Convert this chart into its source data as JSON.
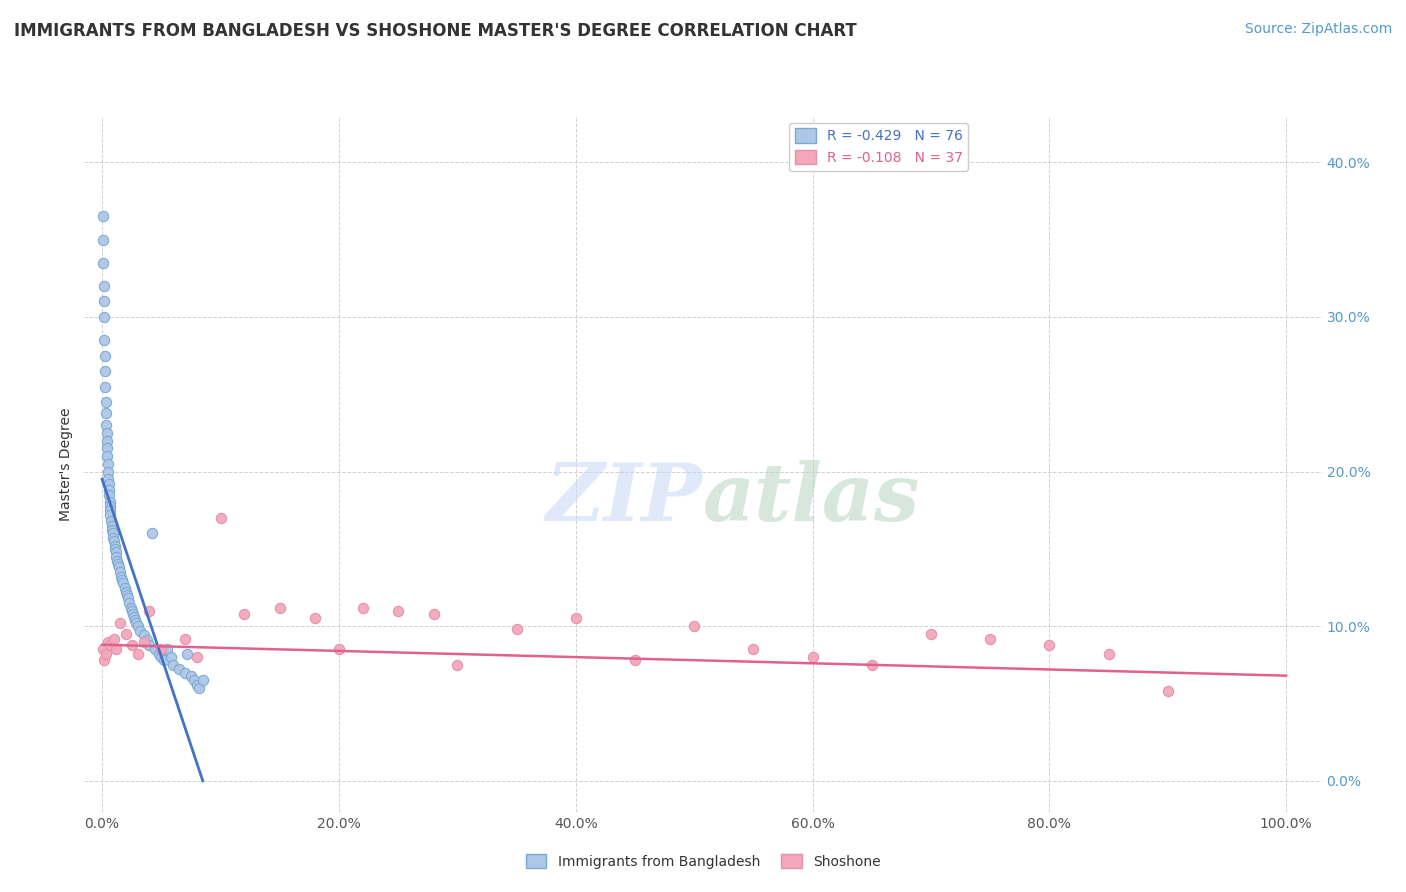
{
  "title": "IMMIGRANTS FROM BANGLADESH VS SHOSHONE MASTER'S DEGREE CORRELATION CHART",
  "source": "Source: ZipAtlas.com",
  "ylabel_left": "Master's Degree",
  "x_tick_labels": [
    "0.0%",
    "20.0%",
    "40.0%",
    "60.0%",
    "80.0%",
    "100.0%"
  ],
  "x_tick_values": [
    0,
    20,
    40,
    60,
    80,
    100
  ],
  "y_tick_labels_right": [
    "0.0%",
    "10.0%",
    "20.0%",
    "30.0%",
    "40.0%"
  ],
  "y_tick_values": [
    0,
    10,
    20,
    30,
    40
  ],
  "xlim": [
    -1.5,
    103
  ],
  "ylim": [
    -2,
    43
  ],
  "legend_entries": [
    {
      "label": "R = -0.429   N = 76",
      "facecolor": "#aec6e8",
      "edgecolor": "#7aaad0"
    },
    {
      "label": "R = -0.108   N = 37",
      "facecolor": "#f4a7b9",
      "edgecolor": "#e090b0"
    }
  ],
  "bottom_legend": [
    {
      "label": "Immigrants from Bangladesh",
      "facecolor": "#aec6e8",
      "edgecolor": "#7aaad0"
    },
    {
      "label": "Shoshone",
      "facecolor": "#f4a7b9",
      "edgecolor": "#e090b0"
    }
  ],
  "blue_scatter_x": [
    0.05,
    0.08,
    0.1,
    0.12,
    0.15,
    0.18,
    0.2,
    0.22,
    0.25,
    0.28,
    0.3,
    0.33,
    0.35,
    0.38,
    0.4,
    0.42,
    0.45,
    0.48,
    0.5,
    0.52,
    0.55,
    0.58,
    0.6,
    0.63,
    0.65,
    0.68,
    0.7,
    0.75,
    0.8,
    0.85,
    0.9,
    0.95,
    1.0,
    1.05,
    1.1,
    1.15,
    1.2,
    1.25,
    1.3,
    1.4,
    1.5,
    1.6,
    1.7,
    1.8,
    1.9,
    2.0,
    2.1,
    2.2,
    2.3,
    2.4,
    2.5,
    2.6,
    2.7,
    2.8,
    2.9,
    3.0,
    3.2,
    3.5,
    3.8,
    4.0,
    4.2,
    4.5,
    4.8,
    5.0,
    5.2,
    5.5,
    5.8,
    6.0,
    6.5,
    7.0,
    7.2,
    7.5,
    7.8,
    8.0,
    8.2,
    8.5
  ],
  "blue_scatter_y": [
    36.5,
    35.0,
    33.5,
    32.0,
    31.0,
    30.0,
    28.5,
    27.5,
    26.5,
    25.5,
    24.5,
    23.8,
    23.0,
    22.5,
    22.0,
    21.5,
    21.0,
    20.5,
    20.0,
    19.5,
    19.2,
    18.8,
    18.5,
    18.0,
    17.8,
    17.5,
    17.2,
    16.8,
    16.5,
    16.2,
    16.0,
    15.7,
    15.5,
    15.2,
    15.0,
    14.8,
    14.5,
    14.2,
    14.0,
    13.8,
    13.5,
    13.2,
    13.0,
    12.8,
    12.5,
    12.2,
    12.0,
    11.8,
    11.5,
    11.2,
    11.0,
    10.8,
    10.6,
    10.4,
    10.2,
    10.0,
    9.7,
    9.4,
    9.1,
    8.8,
    16.0,
    8.5,
    8.2,
    8.0,
    7.8,
    8.5,
    8.0,
    7.5,
    7.2,
    7.0,
    8.2,
    6.8,
    6.5,
    6.2,
    6.0,
    6.5
  ],
  "pink_scatter_x": [
    0.1,
    0.2,
    0.3,
    0.5,
    0.7,
    1.0,
    1.2,
    1.5,
    2.0,
    2.5,
    3.0,
    3.5,
    4.0,
    5.0,
    7.0,
    8.0,
    10.0,
    12.0,
    15.0,
    18.0,
    20.0,
    22.0,
    25.0,
    28.0,
    30.0,
    35.0,
    40.0,
    45.0,
    50.0,
    55.0,
    60.0,
    65.0,
    70.0,
    75.0,
    80.0,
    85.0,
    90.0
  ],
  "pink_scatter_y": [
    8.5,
    7.8,
    8.2,
    9.0,
    8.8,
    9.2,
    8.5,
    10.2,
    9.5,
    8.8,
    8.2,
    9.0,
    11.0,
    8.5,
    9.2,
    8.0,
    17.0,
    10.8,
    11.2,
    10.5,
    8.5,
    11.2,
    11.0,
    10.8,
    7.5,
    9.8,
    10.5,
    7.8,
    10.0,
    8.5,
    8.0,
    7.5,
    9.5,
    9.2,
    8.8,
    8.2,
    5.8
  ],
  "blue_line_x": [
    0.0,
    8.5
  ],
  "blue_line_y": [
    19.5,
    0.0
  ],
  "pink_line_x": [
    0.0,
    100.0
  ],
  "pink_line_y": [
    8.8,
    6.8
  ],
  "blue_line_color": "#4472c4",
  "pink_line_color": "#e06090",
  "blue_dot_color": "#aec6e8",
  "pink_dot_color": "#f4a7b9",
  "blue_dot_edge_color": "#7aaad0",
  "pink_dot_edge_color": "#e090b0",
  "grid_color": "#cccccc",
  "background_color": "#ffffff",
  "right_tick_color": "#5599cc",
  "title_color": "#333333",
  "source_color": "#5599cc",
  "ylabel_color": "#333333",
  "title_fontsize": 12,
  "source_fontsize": 10,
  "axis_label_fontsize": 10,
  "tick_fontsize": 10,
  "legend_text_colors": [
    "#4472c4",
    "#e06090"
  ]
}
